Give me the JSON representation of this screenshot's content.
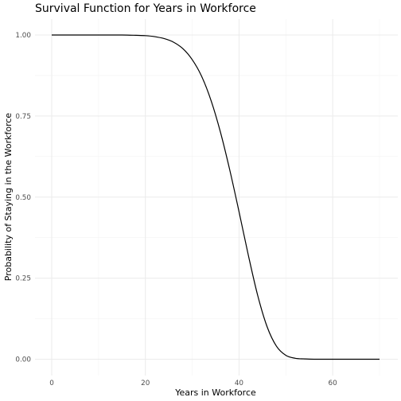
{
  "chart_data": {
    "type": "line",
    "title": "Survival Function for Years in Workforce",
    "xlabel": "Years in Workforce",
    "ylabel": "Probability of Staying in the Workforce",
    "xlim": [
      0,
      70
    ],
    "ylim": [
      0,
      1
    ],
    "x_ticks": [
      0,
      20,
      40,
      60
    ],
    "y_ticks": [
      0.0,
      0.25,
      0.5,
      0.75,
      1.0
    ],
    "x_tick_labels": [
      "0",
      "20",
      "40",
      "60"
    ],
    "y_tick_labels": [
      "0.00",
      "0.25",
      "0.50",
      "0.75",
      "1.00"
    ],
    "grid": true,
    "legend": "none",
    "line_color": "#000000",
    "series": [
      {
        "x": [
          0,
          5,
          10,
          15,
          18,
          20,
          22,
          24,
          26,
          28,
          30,
          32,
          34,
          36,
          38,
          40,
          42,
          44,
          46,
          48,
          50,
          52,
          54,
          56,
          60,
          65,
          70
        ],
        "y": [
          1.0,
          1.0,
          1.0,
          1.0,
          0.999,
          0.998,
          0.995,
          0.989,
          0.978,
          0.958,
          0.924,
          0.873,
          0.799,
          0.702,
          0.585,
          0.455,
          0.32,
          0.196,
          0.1,
          0.04,
          0.012,
          0.003,
          0.001,
          0.0,
          0.0,
          0.0,
          0.0
        ]
      }
    ]
  }
}
